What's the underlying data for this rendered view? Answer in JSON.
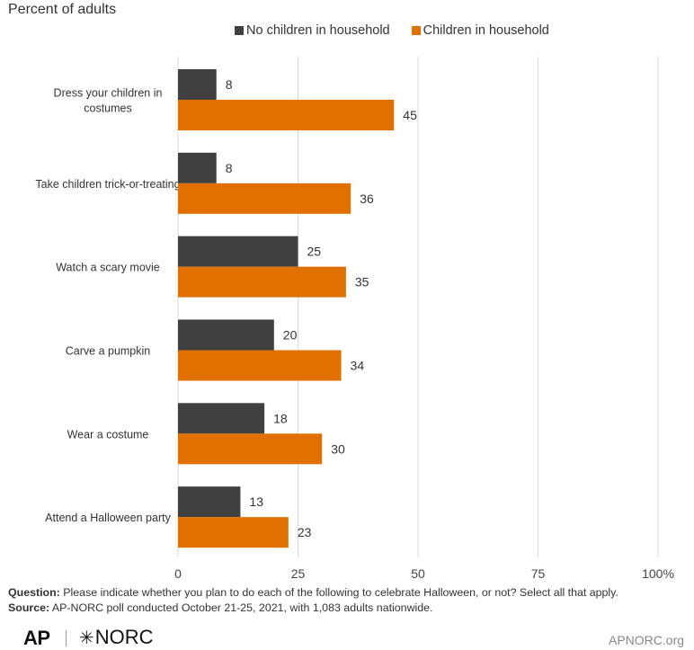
{
  "header": {
    "subtitle": "Percent of adults"
  },
  "legend": [
    {
      "label": "No children in household",
      "color": "#404040"
    },
    {
      "label": "Children in household",
      "color": "#e07000"
    }
  ],
  "chart_data": {
    "type": "bar",
    "orientation": "horizontal",
    "categories": [
      [
        "Dress your children in",
        "costumes"
      ],
      [
        "Take children trick-or-treating"
      ],
      [
        "Watch a scary movie"
      ],
      [
        "Carve a pumpkin"
      ],
      [
        "Wear a costume"
      ],
      [
        "Attend a Halloween party"
      ]
    ],
    "series": [
      {
        "name": "No children in household",
        "color": "#404040",
        "values": [
          8,
          8,
          25,
          20,
          18,
          13
        ]
      },
      {
        "name": "Children in household",
        "color": "#e07000",
        "values": [
          45,
          36,
          35,
          34,
          30,
          23
        ]
      }
    ],
    "xlim": [
      0,
      100
    ],
    "xticks": [
      0,
      25,
      50,
      75,
      100
    ],
    "xtick_labels": [
      "0",
      "25",
      "50",
      "75",
      "100%"
    ],
    "grid": true,
    "legend_position": "top"
  },
  "footer": {
    "question_label": "Question:",
    "question_text": " Please indicate whether you plan to do each of the following to celebrate Halloween, or not? Select all that apply.",
    "source_label": "Source:",
    "source_text": " AP-NORC poll conducted October 21-25, 2021, with 1,083 adults nationwide."
  },
  "branding": {
    "ap_logo": "AP",
    "norc_logo": "NORC",
    "site": "APNORC.org"
  }
}
